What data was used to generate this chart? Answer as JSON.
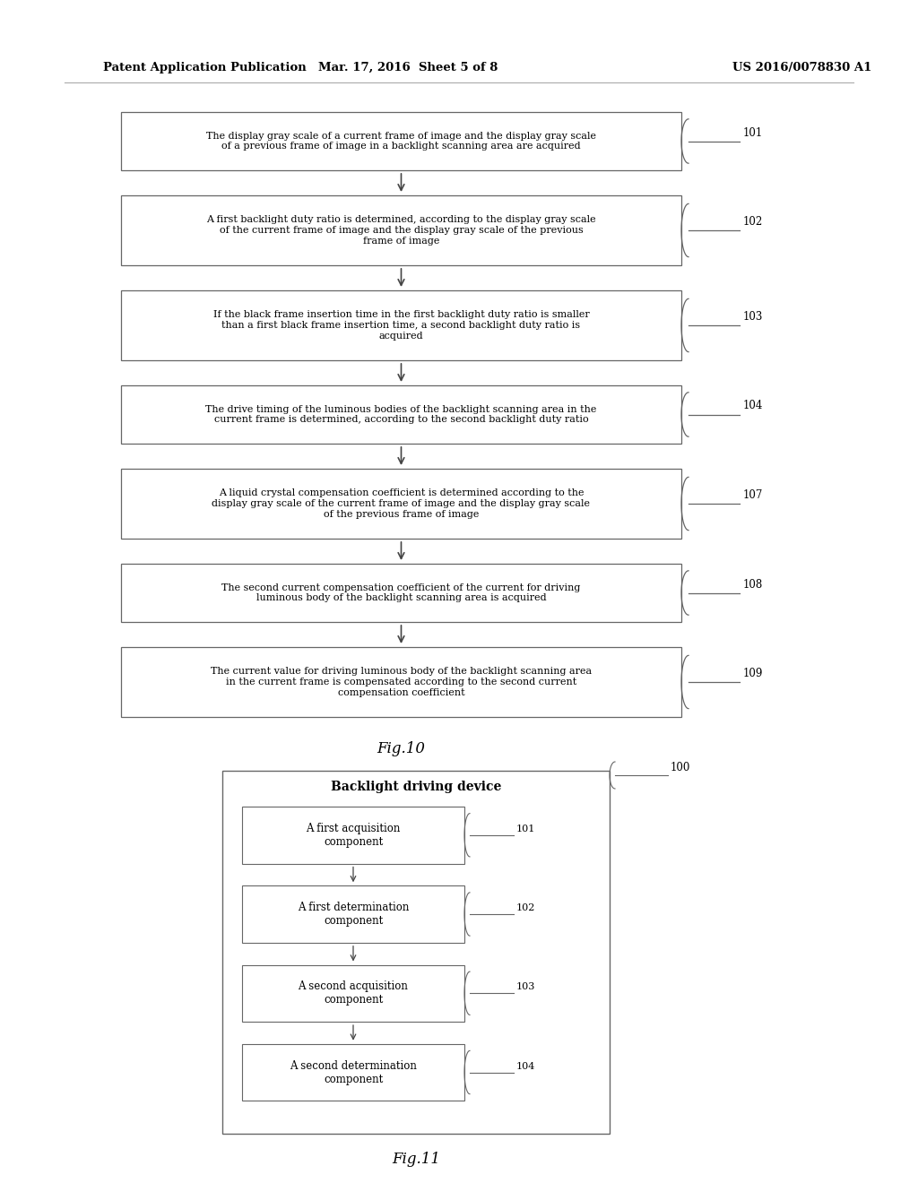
{
  "bg_color": "#ffffff",
  "header_left": "Patent Application Publication",
  "header_mid": "Mar. 17, 2016  Sheet 5 of 8",
  "header_right": "US 2016/0078830 A1",
  "text_color": "#000000",
  "box_edge_color": "#666666",
  "arrow_color": "#444444",
  "fig10_label": "Fig.10",
  "fig11_label": "Fig.11",
  "fig10_boxes": [
    {
      "id": "101",
      "text": "The display gray scale of a current frame of image and the display gray scale\nof a previous frame of image in a backlight scanning area are acquired"
    },
    {
      "id": "102",
      "text": "A first backlight duty ratio is determined, according to the display gray scale\nof the current frame of image and the display gray scale of the previous\nframe of image"
    },
    {
      "id": "103",
      "text": "If the black frame insertion time in the first backlight duty ratio is smaller\nthan a first black frame insertion time, a second backlight duty ratio is\nacquired"
    },
    {
      "id": "104",
      "text": "The drive timing of the luminous bodies of the backlight scanning area in the\ncurrent frame is determined, according to the second backlight duty ratio"
    },
    {
      "id": "107",
      "text": "A liquid crystal compensation coefficient is determined according to the\ndisplay gray scale of the current frame of image and the display gray scale\nof the previous frame of image"
    },
    {
      "id": "108",
      "text": "The second current compensation coefficient of the current for driving\nluminous body of the backlight scanning area is acquired"
    },
    {
      "id": "109",
      "text": "The current value for driving luminous body of the backlight scanning area\nin the current frame is compensated according to the second current\ncompensation coefficient"
    }
  ],
  "fig11_boxes": [
    {
      "id": "101",
      "text": "A first acquisition\ncomponent"
    },
    {
      "id": "102",
      "text": "A first determination\ncomponent"
    },
    {
      "id": "103",
      "text": "A second acquisition\ncomponent"
    },
    {
      "id": "104",
      "text": "A second determination\ncomponent"
    }
  ],
  "fig11_title": "Backlight driving device"
}
